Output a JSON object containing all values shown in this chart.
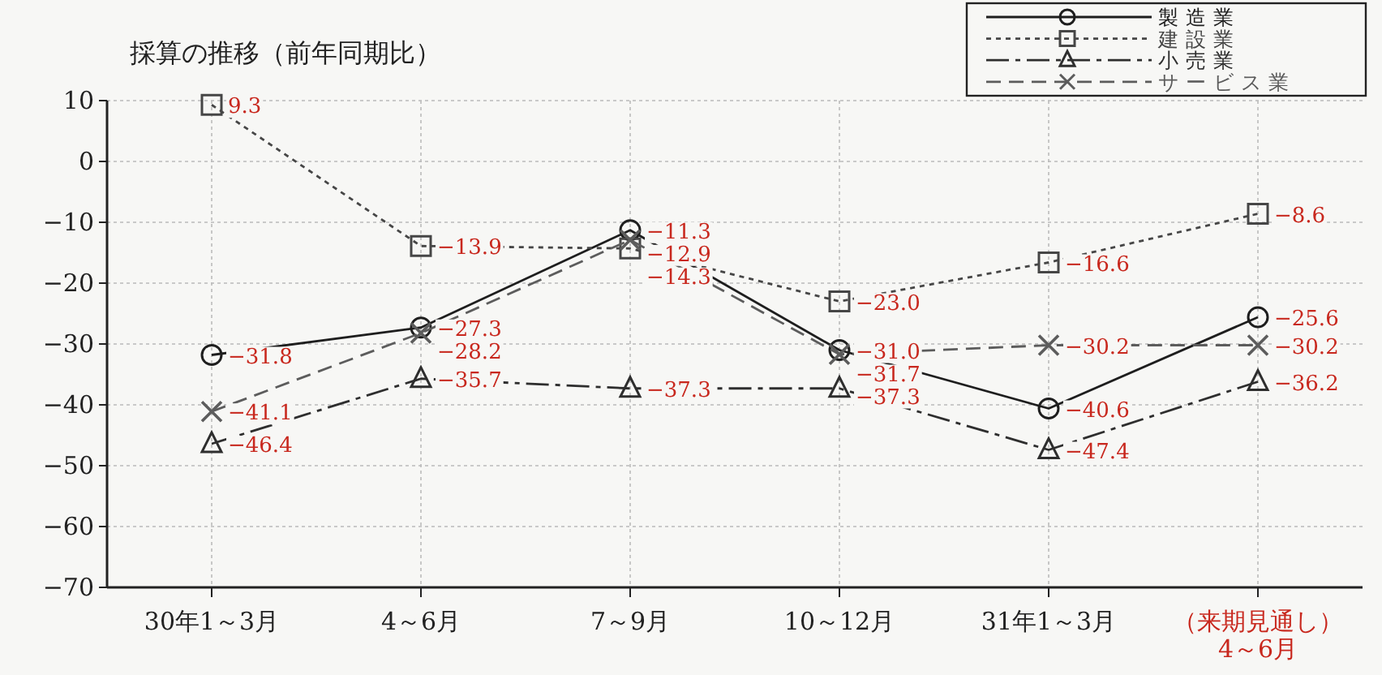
{
  "chart_data": {
    "type": "line",
    "title": "採算の推移（前年同期比）",
    "categories": [
      "30年1～3月",
      "4～6月",
      "7～9月",
      "10～12月",
      "31年1～3月",
      "（来期見通し）\n4～6月"
    ],
    "series": [
      {
        "name": "製造業",
        "color": "#1e1e1e",
        "marker": "circle",
        "line_style": "solid",
        "values": [
          -31.8,
          -27.3,
          -11.3,
          -31.0,
          -40.6,
          -25.6
        ],
        "value_labels": [
          "−31.8",
          "−27.3",
          "−11.3",
          "−31.0",
          "−40.6",
          "−25.6"
        ]
      },
      {
        "name": "建設業",
        "color": "#464646",
        "marker": "square",
        "line_style": "dotted",
        "values": [
          9.3,
          -13.9,
          -14.3,
          -23.0,
          -16.6,
          -8.6
        ],
        "value_labels": [
          "9.3",
          "−13.9",
          "−14.3",
          "−23.0",
          "−16.6",
          "−8.6"
        ]
      },
      {
        "name": "小売業",
        "color": "#2e2e2e",
        "marker": "triangle",
        "line_style": "dashdot",
        "values": [
          -46.4,
          -35.7,
          -37.3,
          -37.3,
          -47.4,
          -36.2
        ],
        "value_labels": [
          "−46.4",
          "−35.7",
          "−37.3",
          "−37.3",
          "−47.4",
          "−36.2"
        ]
      },
      {
        "name": "サービス業",
        "color": "#5c5c5c",
        "marker": "cross",
        "line_style": "dashed",
        "values": [
          -41.1,
          -28.2,
          -12.9,
          -31.7,
          -30.2,
          -30.2
        ],
        "value_labels": [
          "−41.1",
          "−28.2",
          "−12.9",
          "−31.7",
          "−30.2",
          "−30.2"
        ]
      }
    ],
    "ylim": [
      -70,
      10
    ],
    "yticks": [
      -70,
      -60,
      -50,
      -40,
      -30,
      -20,
      -10,
      0,
      10
    ],
    "grid": true,
    "legend": "top right"
  }
}
